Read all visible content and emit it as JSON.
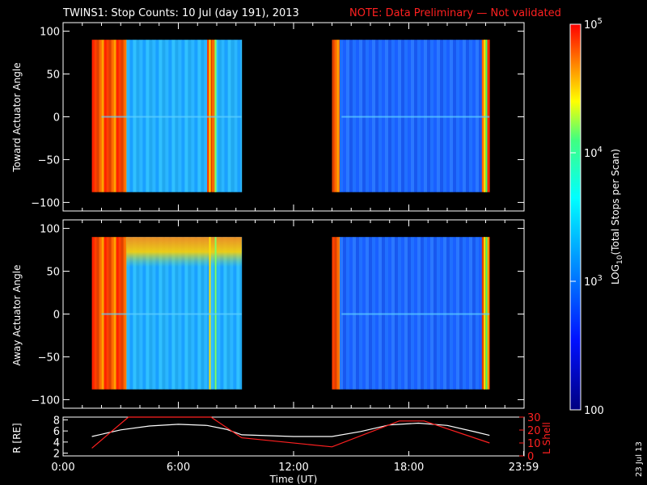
{
  "title": {
    "main": "TWINS1: Stop Counts: 10 Jul (day 191), 2013",
    "note": "NOTE: Data Preliminary — Not validated"
  },
  "colors": {
    "background": "#000000",
    "axes": "#ffffff",
    "note": "#ff2020",
    "r_line": "#ffffff",
    "l_shell_line": "#ff2020"
  },
  "footer": {
    "date_stamp": "23 Jul 13"
  },
  "chart_data": [
    {
      "type": "heatmap",
      "ylabel": "Toward Actuator Angle",
      "ylim": [
        -110,
        110
      ],
      "yticks": [
        "100",
        "50",
        "0",
        "−50",
        "−100"
      ],
      "ytick_values": [
        100,
        50,
        0,
        -50,
        -100
      ],
      "xlim_hours": [
        0,
        24
      ],
      "data_y_range": [
        -88,
        90
      ],
      "data_segments_hours": [
        [
          1.5,
          9.3
        ],
        [
          14.0,
          22.2
        ]
      ],
      "bands": [
        {
          "x": [
            1.5,
            3.3
          ],
          "value": "high",
          "note": "red/orange striping"
        },
        {
          "x": [
            3.3,
            7.5
          ],
          "value": "medium"
        },
        {
          "x": [
            7.5,
            7.9
          ],
          "value": "high"
        },
        {
          "x": [
            7.9,
            9.3
          ],
          "value": "medium"
        },
        {
          "x": [
            14.0,
            14.4
          ],
          "value": "high"
        },
        {
          "x": [
            14.4,
            21.8
          ],
          "value": "low"
        },
        {
          "x": [
            21.8,
            22.2
          ],
          "value": "high"
        }
      ]
    },
    {
      "type": "heatmap",
      "ylabel": "Away Actuator Angle",
      "ylim": [
        -110,
        110
      ],
      "yticks": [
        "100",
        "50",
        "0",
        "−50",
        "−100"
      ],
      "ytick_values": [
        100,
        50,
        0,
        -50,
        -100
      ],
      "xlim_hours": [
        0,
        24
      ],
      "data_y_range": [
        -88,
        90
      ],
      "data_segments_hours": [
        [
          1.5,
          9.3
        ],
        [
          14.0,
          22.2
        ]
      ],
      "bands": [
        {
          "x": [
            1.5,
            3.3
          ],
          "value": "high"
        },
        {
          "x": [
            3.3,
            9.3
          ],
          "value": "medium",
          "note": "yellow/orange band at top 70–90°"
        },
        {
          "x": [
            14.0,
            14.4
          ],
          "value": "high"
        },
        {
          "x": [
            14.4,
            21.8
          ],
          "value": "low"
        },
        {
          "x": [
            21.8,
            22.2
          ],
          "value": "high"
        }
      ]
    },
    {
      "type": "line",
      "ylabel_left": "R [RE]",
      "ylabel_left_sub": "E",
      "ylabel_right": "L Shell",
      "xlabel": "Time (UT)",
      "xticks": [
        "0:00",
        "6:00",
        "12:00",
        "18:00",
        "23:59"
      ],
      "xtick_values": [
        0,
        6,
        12,
        18,
        23.98
      ],
      "ylim_left": [
        1.5,
        8.5
      ],
      "yticks_left": [
        "8",
        "6",
        "4",
        "2"
      ],
      "ytick_values_left": [
        8,
        6,
        4,
        2
      ],
      "ylim_right": [
        0,
        30
      ],
      "yticks_right": [
        "30",
        "20",
        "10",
        "0"
      ],
      "ytick_values_right": [
        30,
        20,
        10,
        0
      ],
      "series": [
        {
          "name": "R",
          "axis": "left",
          "x": [
            1.5,
            3,
            4.5,
            6,
            7.5,
            8.5,
            9.3,
            12,
            14,
            15.5,
            17,
            18.5,
            20,
            21.5,
            22.2
          ],
          "y": [
            5.0,
            6.2,
            6.9,
            7.2,
            7.0,
            6.3,
            5.3,
            5.0,
            5.0,
            5.9,
            7.1,
            7.4,
            7.0,
            5.8,
            5.2
          ]
        },
        {
          "name": "L Shell",
          "axis": "right",
          "x": [
            1.5,
            3.4,
            7.7,
            9.3,
            14.0,
            17.5,
            18.8,
            22.2
          ],
          "y": [
            6,
            30,
            30,
            14,
            7,
            27,
            27,
            10
          ]
        }
      ]
    }
  ],
  "colorbar": {
    "label": "LOG10(Total Stops per Scan)",
    "label_parts": [
      "LOG",
      "10",
      "(Total Stops per Scan)"
    ],
    "range": [
      100,
      100000
    ],
    "tick_values": [
      100000,
      10000,
      1000,
      100
    ],
    "tick_labels": [
      {
        "base": "10",
        "exp": "5"
      },
      {
        "base": "10",
        "exp": "4"
      },
      {
        "base": "10",
        "exp": "3"
      },
      {
        "base": "100",
        "exp": ""
      }
    ]
  }
}
